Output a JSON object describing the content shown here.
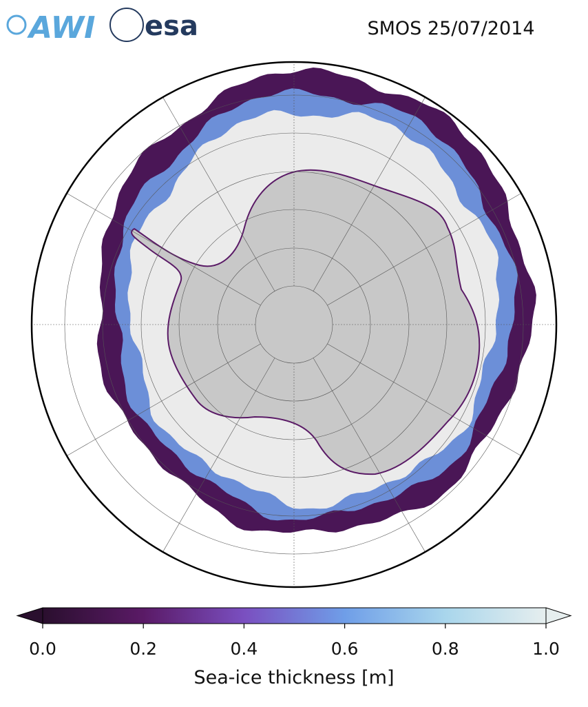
{
  "header": {
    "logo_awi": "AWI",
    "logo_esa": "esa",
    "title": "SMOS 25/07/2014"
  },
  "colorbar": {
    "lim": [
      0,
      1
    ],
    "ticks": [
      {
        "value": 0,
        "label": "0.0"
      },
      0.2,
      0.4,
      0.6,
      0.8,
      {
        "value": 1,
        "label": "1.0"
      }
    ],
    "label": "Sea-ice thickness [m]",
    "colors": [
      "#2a0f2e",
      "#5a1a66",
      "#7a4fc0",
      "#6f9ee8",
      "#a9d6ec",
      "#e6eeee"
    ]
  }
}
